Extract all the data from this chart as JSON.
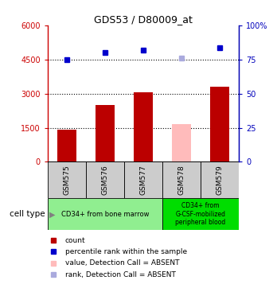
{
  "title": "GDS53 / D80009_at",
  "samples": [
    "GSM575",
    "GSM576",
    "GSM577",
    "GSM578",
    "GSM579"
  ],
  "bar_values": [
    1420,
    2500,
    3050,
    1650,
    3320
  ],
  "bar_colors": [
    "#bb0000",
    "#bb0000",
    "#bb0000",
    "#ffbbbb",
    "#bb0000"
  ],
  "dot_values": [
    75,
    80,
    82,
    76,
    84
  ],
  "dot_colors": [
    "#0000cc",
    "#0000cc",
    "#0000cc",
    "#aaaadd",
    "#0000cc"
  ],
  "ylim_left": [
    0,
    6000
  ],
  "ylim_right": [
    0,
    100
  ],
  "yticks_left": [
    0,
    1500,
    3000,
    4500,
    6000
  ],
  "yticks_right": [
    0,
    25,
    50,
    75,
    100
  ],
  "ytick_labels_left": [
    "0",
    "1500",
    "3000",
    "4500",
    "6000"
  ],
  "ytick_labels_right": [
    "0",
    "25",
    "50",
    "75",
    "100%"
  ],
  "hlines": [
    1500,
    3000,
    4500
  ],
  "group0_color": "#90ee90",
  "group1_color": "#00dd00",
  "group0_label": "CD34+ from bone marrow",
  "group1_label": "CD34+ from\nG-CSF-mobilized\nperipheral blood",
  "cell_type_label": "cell type",
  "left_axis_color": "#cc0000",
  "right_axis_color": "#0000bb",
  "legend_items": [
    {
      "color": "#bb0000",
      "label": "count"
    },
    {
      "color": "#0000cc",
      "label": "percentile rank within the sample"
    },
    {
      "color": "#ffbbbb",
      "label": "value, Detection Call = ABSENT"
    },
    {
      "color": "#aaaadd",
      "label": "rank, Detection Call = ABSENT"
    }
  ],
  "bar_width": 0.5,
  "sample_box_color": "#cccccc"
}
